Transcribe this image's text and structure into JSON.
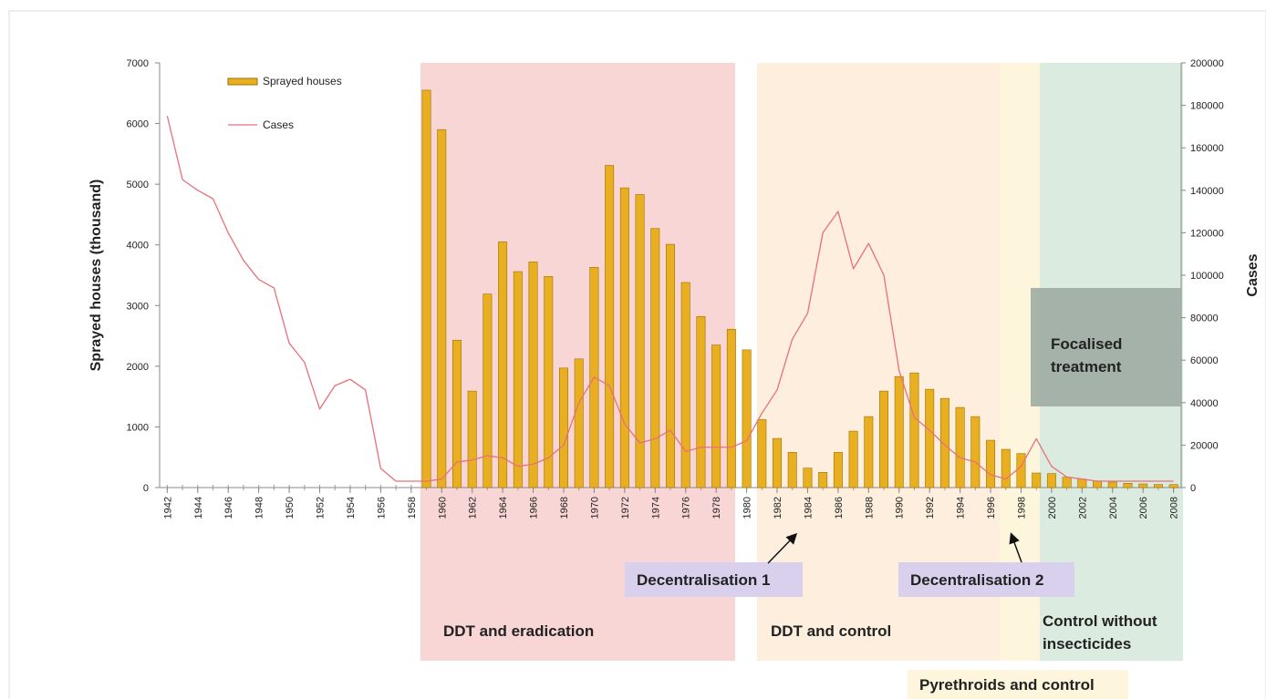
{
  "chart_data": {
    "type": "combo",
    "x": [
      1942,
      1943,
      1944,
      1945,
      1946,
      1947,
      1948,
      1949,
      1950,
      1951,
      1952,
      1953,
      1954,
      1955,
      1956,
      1957,
      1958,
      1959,
      1960,
      1961,
      1962,
      1963,
      1964,
      1965,
      1966,
      1967,
      1968,
      1969,
      1970,
      1971,
      1972,
      1973,
      1974,
      1975,
      1976,
      1977,
      1978,
      1979,
      1980,
      1981,
      1982,
      1983,
      1984,
      1985,
      1986,
      1987,
      1988,
      1989,
      1990,
      1991,
      1992,
      1993,
      1994,
      1995,
      1996,
      1997,
      1998,
      1999,
      2000,
      2001,
      2002,
      2003,
      2004,
      2005,
      2006,
      2007,
      2008
    ],
    "xlim": [
      1941.5,
      2008.5
    ],
    "xticks": [
      1942,
      1944,
      1946,
      1948,
      1950,
      1952,
      1954,
      1956,
      1958,
      1960,
      1962,
      1964,
      1966,
      1968,
      1970,
      1972,
      1974,
      1976,
      1978,
      1980,
      1982,
      1984,
      1986,
      1988,
      1990,
      1992,
      1994,
      1996,
      1998,
      2000,
      2002,
      2004,
      2006,
      2008
    ],
    "ylim": [
      0,
      7000
    ],
    "yticks": [
      0,
      1000,
      2000,
      3000,
      4000,
      5000,
      6000,
      7000
    ],
    "y2lim": [
      0,
      200000
    ],
    "y2ticks": [
      0,
      20000,
      40000,
      60000,
      80000,
      100000,
      120000,
      140000,
      160000,
      180000,
      200000
    ],
    "y_label": "Sprayed houses (thousand)",
    "y2_label": "Cases",
    "series": [
      {
        "name": "Sprayed houses",
        "type": "bar",
        "color": "#e8b020",
        "values": [
          null,
          null,
          null,
          null,
          null,
          null,
          null,
          null,
          null,
          null,
          null,
          null,
          null,
          null,
          null,
          null,
          null,
          6550,
          5900,
          2430,
          1590,
          3190,
          4050,
          3560,
          3720,
          3480,
          1970,
          2120,
          3630,
          5310,
          4940,
          4830,
          4270,
          4010,
          3380,
          2820,
          2350,
          2610,
          2270,
          1120,
          810,
          580,
          320,
          250,
          580,
          930,
          1170,
          1590,
          1830,
          1890,
          1620,
          1470,
          1320,
          1170,
          780,
          630,
          560,
          240,
          230,
          170,
          140,
          110,
          90,
          70,
          60,
          50,
          50
        ]
      },
      {
        "name": "Cases",
        "type": "line",
        "axis": "y2",
        "color": "#e8707a",
        "values": [
          175000,
          145000,
          140000,
          136000,
          120000,
          107000,
          98000,
          94000,
          68000,
          59000,
          37000,
          48000,
          51000,
          46000,
          9000,
          3000,
          3000,
          3000,
          4000,
          12000,
          13000,
          15000,
          14000,
          10000,
          11000,
          14000,
          20000,
          40000,
          52000,
          48000,
          30000,
          21000,
          23000,
          27000,
          17000,
          19000,
          19000,
          19000,
          22000,
          35000,
          46000,
          70000,
          82000,
          120000,
          130000,
          103000,
          115000,
          100000,
          55000,
          33000,
          27000,
          20000,
          14000,
          12000,
          6000,
          4000,
          10000,
          23000,
          10000,
          5000,
          4000,
          3000,
          3000,
          3000,
          3000,
          3000,
          3000
        ]
      }
    ],
    "annotations": {
      "periods": [
        "DDT and eradication",
        "DDT and control",
        "Pyrethroids and control",
        [
          "Control without",
          "insecticides"
        ]
      ],
      "focalised": [
        "Focalised",
        "treatment"
      ],
      "decentralisation": [
        "Decentralisation 1",
        "Decentralisation 2"
      ]
    }
  }
}
